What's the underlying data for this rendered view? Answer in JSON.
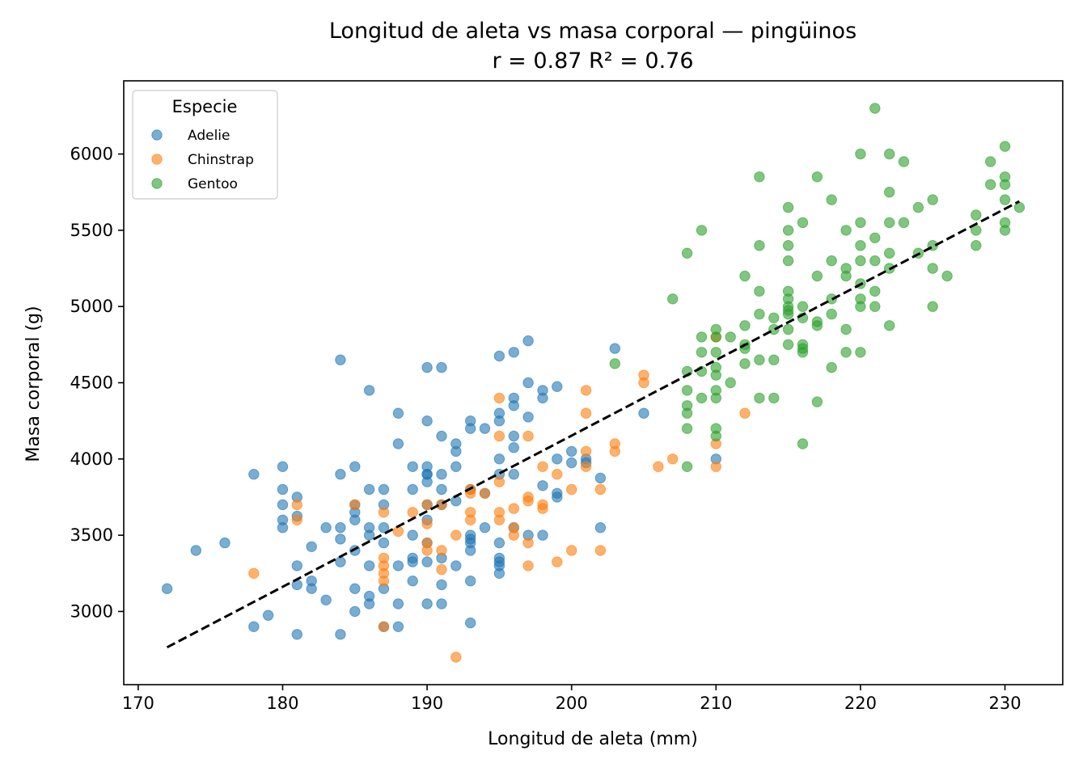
{
  "chart_data": {
    "type": "scatter",
    "title": "Longitud de aleta vs masa corporal — pingüinos",
    "subtitle": "r = 0.87   R² = 0.76",
    "xlabel": "Longitud de aleta (mm)",
    "ylabel": "Masa corporal (g)",
    "xlim": [
      169,
      234
    ],
    "ylim": [
      2520,
      6480
    ],
    "xticks": [
      "170",
      "180",
      "190",
      "200",
      "210",
      "220",
      "230"
    ],
    "yticks": [
      "3000",
      "3500",
      "4000",
      "4500",
      "5000",
      "5500",
      "6000"
    ],
    "grid": false,
    "legend": {
      "title": "Especie",
      "placement": "top-left"
    },
    "fit_line": {
      "x": [
        172,
        231
      ],
      "y": [
        2765,
        5690
      ],
      "style": "dashed",
      "color": "#000000"
    },
    "series": [
      {
        "name": "Adelie",
        "color": "#1f77b4",
        "points": [
          [
            172,
            3150
          ],
          [
            174,
            3400
          ],
          [
            176,
            3450
          ],
          [
            178,
            3900
          ],
          [
            178,
            2900
          ],
          [
            179,
            2975
          ],
          [
            180,
            3950
          ],
          [
            180,
            3800
          ],
          [
            180,
            3700
          ],
          [
            180,
            3600
          ],
          [
            180,
            3550
          ],
          [
            181,
            3750
          ],
          [
            181,
            3625
          ],
          [
            181,
            3300
          ],
          [
            181,
            3175
          ],
          [
            181,
            2850
          ],
          [
            182,
            3200
          ],
          [
            182,
            3150
          ],
          [
            182,
            3425
          ],
          [
            183,
            3550
          ],
          [
            183,
            3075
          ],
          [
            184,
            4650
          ],
          [
            184,
            3900
          ],
          [
            184,
            3550
          ],
          [
            184,
            3475
          ],
          [
            184,
            3325
          ],
          [
            184,
            2850
          ],
          [
            185,
            3950
          ],
          [
            185,
            3700
          ],
          [
            185,
            3650
          ],
          [
            185,
            3600
          ],
          [
            185,
            3400
          ],
          [
            185,
            3150
          ],
          [
            185,
            3000
          ],
          [
            186,
            4450
          ],
          [
            186,
            3800
          ],
          [
            186,
            3550
          ],
          [
            186,
            3500
          ],
          [
            186,
            3300
          ],
          [
            186,
            3100
          ],
          [
            186,
            3050
          ],
          [
            187,
            3800
          ],
          [
            187,
            3700
          ],
          [
            187,
            3550
          ],
          [
            187,
            3450
          ],
          [
            187,
            3150
          ],
          [
            187,
            2900
          ],
          [
            188,
            4300
          ],
          [
            188,
            4100
          ],
          [
            188,
            3300
          ],
          [
            188,
            3050
          ],
          [
            188,
            2900
          ],
          [
            189,
            3950
          ],
          [
            189,
            3800
          ],
          [
            189,
            3500
          ],
          [
            189,
            3350
          ],
          [
            189,
            3325
          ],
          [
            189,
            3200
          ],
          [
            190,
            4600
          ],
          [
            190,
            4250
          ],
          [
            190,
            3950
          ],
          [
            190,
            3900
          ],
          [
            190,
            3850
          ],
          [
            190,
            3700
          ],
          [
            190,
            3600
          ],
          [
            190,
            3450
          ],
          [
            190,
            3325
          ],
          [
            190,
            3050
          ],
          [
            190,
            3900
          ],
          [
            191,
            4600
          ],
          [
            191,
            4150
          ],
          [
            191,
            3900
          ],
          [
            191,
            3800
          ],
          [
            191,
            3700
          ],
          [
            191,
            3350
          ],
          [
            191,
            3175
          ],
          [
            191,
            3050
          ],
          [
            192,
            4100
          ],
          [
            192,
            4050
          ],
          [
            192,
            3950
          ],
          [
            192,
            3725
          ],
          [
            192,
            3300
          ],
          [
            193,
            4250
          ],
          [
            193,
            4200
          ],
          [
            193,
            3800
          ],
          [
            193,
            3500
          ],
          [
            193,
            3475
          ],
          [
            193,
            3450
          ],
          [
            193,
            3400
          ],
          [
            193,
            3200
          ],
          [
            193,
            2925
          ],
          [
            194,
            4200
          ],
          [
            194,
            3775
          ],
          [
            194,
            3550
          ],
          [
            195,
            4675
          ],
          [
            195,
            4300
          ],
          [
            195,
            4250
          ],
          [
            195,
            4000
          ],
          [
            195,
            3900
          ],
          [
            195,
            3450
          ],
          [
            195,
            3350
          ],
          [
            195,
            3325
          ],
          [
            195,
            3300
          ],
          [
            195,
            3250
          ],
          [
            196,
            4700
          ],
          [
            196,
            4400
          ],
          [
            196,
            4350
          ],
          [
            196,
            4150
          ],
          [
            196,
            4075
          ],
          [
            196,
            3900
          ],
          [
            196,
            3550
          ],
          [
            197,
            4775
          ],
          [
            197,
            4500
          ],
          [
            197,
            4275
          ],
          [
            197,
            3500
          ],
          [
            198,
            4450
          ],
          [
            198,
            4400
          ],
          [
            198,
            3825
          ],
          [
            198,
            3500
          ],
          [
            199,
            4475
          ],
          [
            199,
            4000
          ],
          [
            199,
            3775
          ],
          [
            199,
            3750
          ],
          [
            200,
            4050
          ],
          [
            200,
            3975
          ],
          [
            201,
            4000
          ],
          [
            201,
            3975
          ],
          [
            202,
            3875
          ],
          [
            202,
            3550
          ],
          [
            203,
            4725
          ],
          [
            205,
            4300
          ],
          [
            210,
            4000
          ]
        ]
      },
      {
        "name": "Chinstrap",
        "color": "#ff7f0e",
        "points": [
          [
            178,
            3250
          ],
          [
            181,
            3700
          ],
          [
            181,
            3600
          ],
          [
            185,
            3700
          ],
          [
            187,
            3650
          ],
          [
            187,
            3350
          ],
          [
            187,
            3300
          ],
          [
            187,
            3250
          ],
          [
            187,
            3200
          ],
          [
            187,
            2900
          ],
          [
            188,
            3525
          ],
          [
            189,
            3650
          ],
          [
            190,
            3700
          ],
          [
            190,
            3575
          ],
          [
            190,
            3450
          ],
          [
            190,
            3400
          ],
          [
            191,
            3700
          ],
          [
            191,
            3400
          ],
          [
            191,
            3275
          ],
          [
            192,
            3500
          ],
          [
            192,
            2700
          ],
          [
            193,
            3800
          ],
          [
            193,
            3775
          ],
          [
            193,
            3650
          ],
          [
            193,
            3600
          ],
          [
            194,
            3775
          ],
          [
            195,
            4400
          ],
          [
            195,
            4150
          ],
          [
            195,
            3850
          ],
          [
            195,
            3650
          ],
          [
            195,
            3600
          ],
          [
            196,
            3675
          ],
          [
            196,
            3550
          ],
          [
            196,
            3500
          ],
          [
            197,
            4150
          ],
          [
            197,
            3750
          ],
          [
            197,
            3725
          ],
          [
            197,
            3450
          ],
          [
            197,
            3300
          ],
          [
            198,
            3950
          ],
          [
            198,
            3700
          ],
          [
            198,
            3675
          ],
          [
            199,
            3900
          ],
          [
            199,
            3325
          ],
          [
            200,
            3800
          ],
          [
            200,
            3400
          ],
          [
            201,
            4450
          ],
          [
            201,
            4300
          ],
          [
            201,
            4050
          ],
          [
            201,
            3950
          ],
          [
            202,
            3800
          ],
          [
            202,
            3400
          ],
          [
            203,
            4100
          ],
          [
            203,
            4050
          ],
          [
            205,
            4550
          ],
          [
            205,
            4500
          ],
          [
            206,
            3950
          ],
          [
            207,
            4000
          ],
          [
            210,
            4800
          ],
          [
            210,
            4100
          ],
          [
            210,
            3950
          ],
          [
            212,
            4300
          ]
        ]
      },
      {
        "name": "Gentoo",
        "color": "#2ca02c",
        "points": [
          [
            203,
            4625
          ],
          [
            207,
            5050
          ],
          [
            208,
            5350
          ],
          [
            208,
            4575
          ],
          [
            208,
            4450
          ],
          [
            208,
            4350
          ],
          [
            208,
            4300
          ],
          [
            208,
            4200
          ],
          [
            208,
            3950
          ],
          [
            209,
            5500
          ],
          [
            209,
            4800
          ],
          [
            209,
            4700
          ],
          [
            209,
            4575
          ],
          [
            209,
            4400
          ],
          [
            210,
            4850
          ],
          [
            210,
            4800
          ],
          [
            210,
            4700
          ],
          [
            210,
            4600
          ],
          [
            210,
            4550
          ],
          [
            210,
            4450
          ],
          [
            210,
            4400
          ],
          [
            210,
            4200
          ],
          [
            210,
            4150
          ],
          [
            211,
            4800
          ],
          [
            211,
            4500
          ],
          [
            212,
            5200
          ],
          [
            212,
            4875
          ],
          [
            212,
            4750
          ],
          [
            212,
            4725
          ],
          [
            212,
            4625
          ],
          [
            213,
            5850
          ],
          [
            213,
            5400
          ],
          [
            213,
            5100
          ],
          [
            213,
            4950
          ],
          [
            213,
            4650
          ],
          [
            213,
            4400
          ],
          [
            214,
            4925
          ],
          [
            214,
            4850
          ],
          [
            214,
            4650
          ],
          [
            214,
            4400
          ],
          [
            215,
            5650
          ],
          [
            215,
            5500
          ],
          [
            215,
            5400
          ],
          [
            215,
            5300
          ],
          [
            215,
            5100
          ],
          [
            215,
            5050
          ],
          [
            215,
            5000
          ],
          [
            215,
            4975
          ],
          [
            215,
            4950
          ],
          [
            215,
            4850
          ],
          [
            215,
            4750
          ],
          [
            216,
            5550
          ],
          [
            216,
            5000
          ],
          [
            216,
            4925
          ],
          [
            216,
            4750
          ],
          [
            216,
            4725
          ],
          [
            216,
            4700
          ],
          [
            216,
            4100
          ],
          [
            217,
            5850
          ],
          [
            217,
            5200
          ],
          [
            217,
            4900
          ],
          [
            217,
            4875
          ],
          [
            217,
            4375
          ],
          [
            218,
            5700
          ],
          [
            218,
            5300
          ],
          [
            218,
            5050
          ],
          [
            218,
            4950
          ],
          [
            218,
            4600
          ],
          [
            219,
            5500
          ],
          [
            219,
            5250
          ],
          [
            219,
            5200
          ],
          [
            219,
            4850
          ],
          [
            219,
            4700
          ],
          [
            220,
            6000
          ],
          [
            220,
            5550
          ],
          [
            220,
            5400
          ],
          [
            220,
            5300
          ],
          [
            220,
            5150
          ],
          [
            220,
            5050
          ],
          [
            220,
            5000
          ],
          [
            220,
            4700
          ],
          [
            221,
            6300
          ],
          [
            221,
            5450
          ],
          [
            221,
            5300
          ],
          [
            221,
            5100
          ],
          [
            221,
            5000
          ],
          [
            222,
            6000
          ],
          [
            222,
            5750
          ],
          [
            222,
            5550
          ],
          [
            222,
            5350
          ],
          [
            222,
            5250
          ],
          [
            222,
            4875
          ],
          [
            223,
            5950
          ],
          [
            223,
            5550
          ],
          [
            224,
            5650
          ],
          [
            224,
            5350
          ],
          [
            225,
            5700
          ],
          [
            225,
            5400
          ],
          [
            225,
            5250
          ],
          [
            225,
            5000
          ],
          [
            226,
            5200
          ],
          [
            228,
            5600
          ],
          [
            228,
            5500
          ],
          [
            228,
            5400
          ],
          [
            229,
            5950
          ],
          [
            229,
            5800
          ],
          [
            230,
            6050
          ],
          [
            230,
            5850
          ],
          [
            230,
            5800
          ],
          [
            230,
            5700
          ],
          [
            230,
            5550
          ],
          [
            230,
            5500
          ],
          [
            231,
            5650
          ]
        ]
      }
    ]
  }
}
